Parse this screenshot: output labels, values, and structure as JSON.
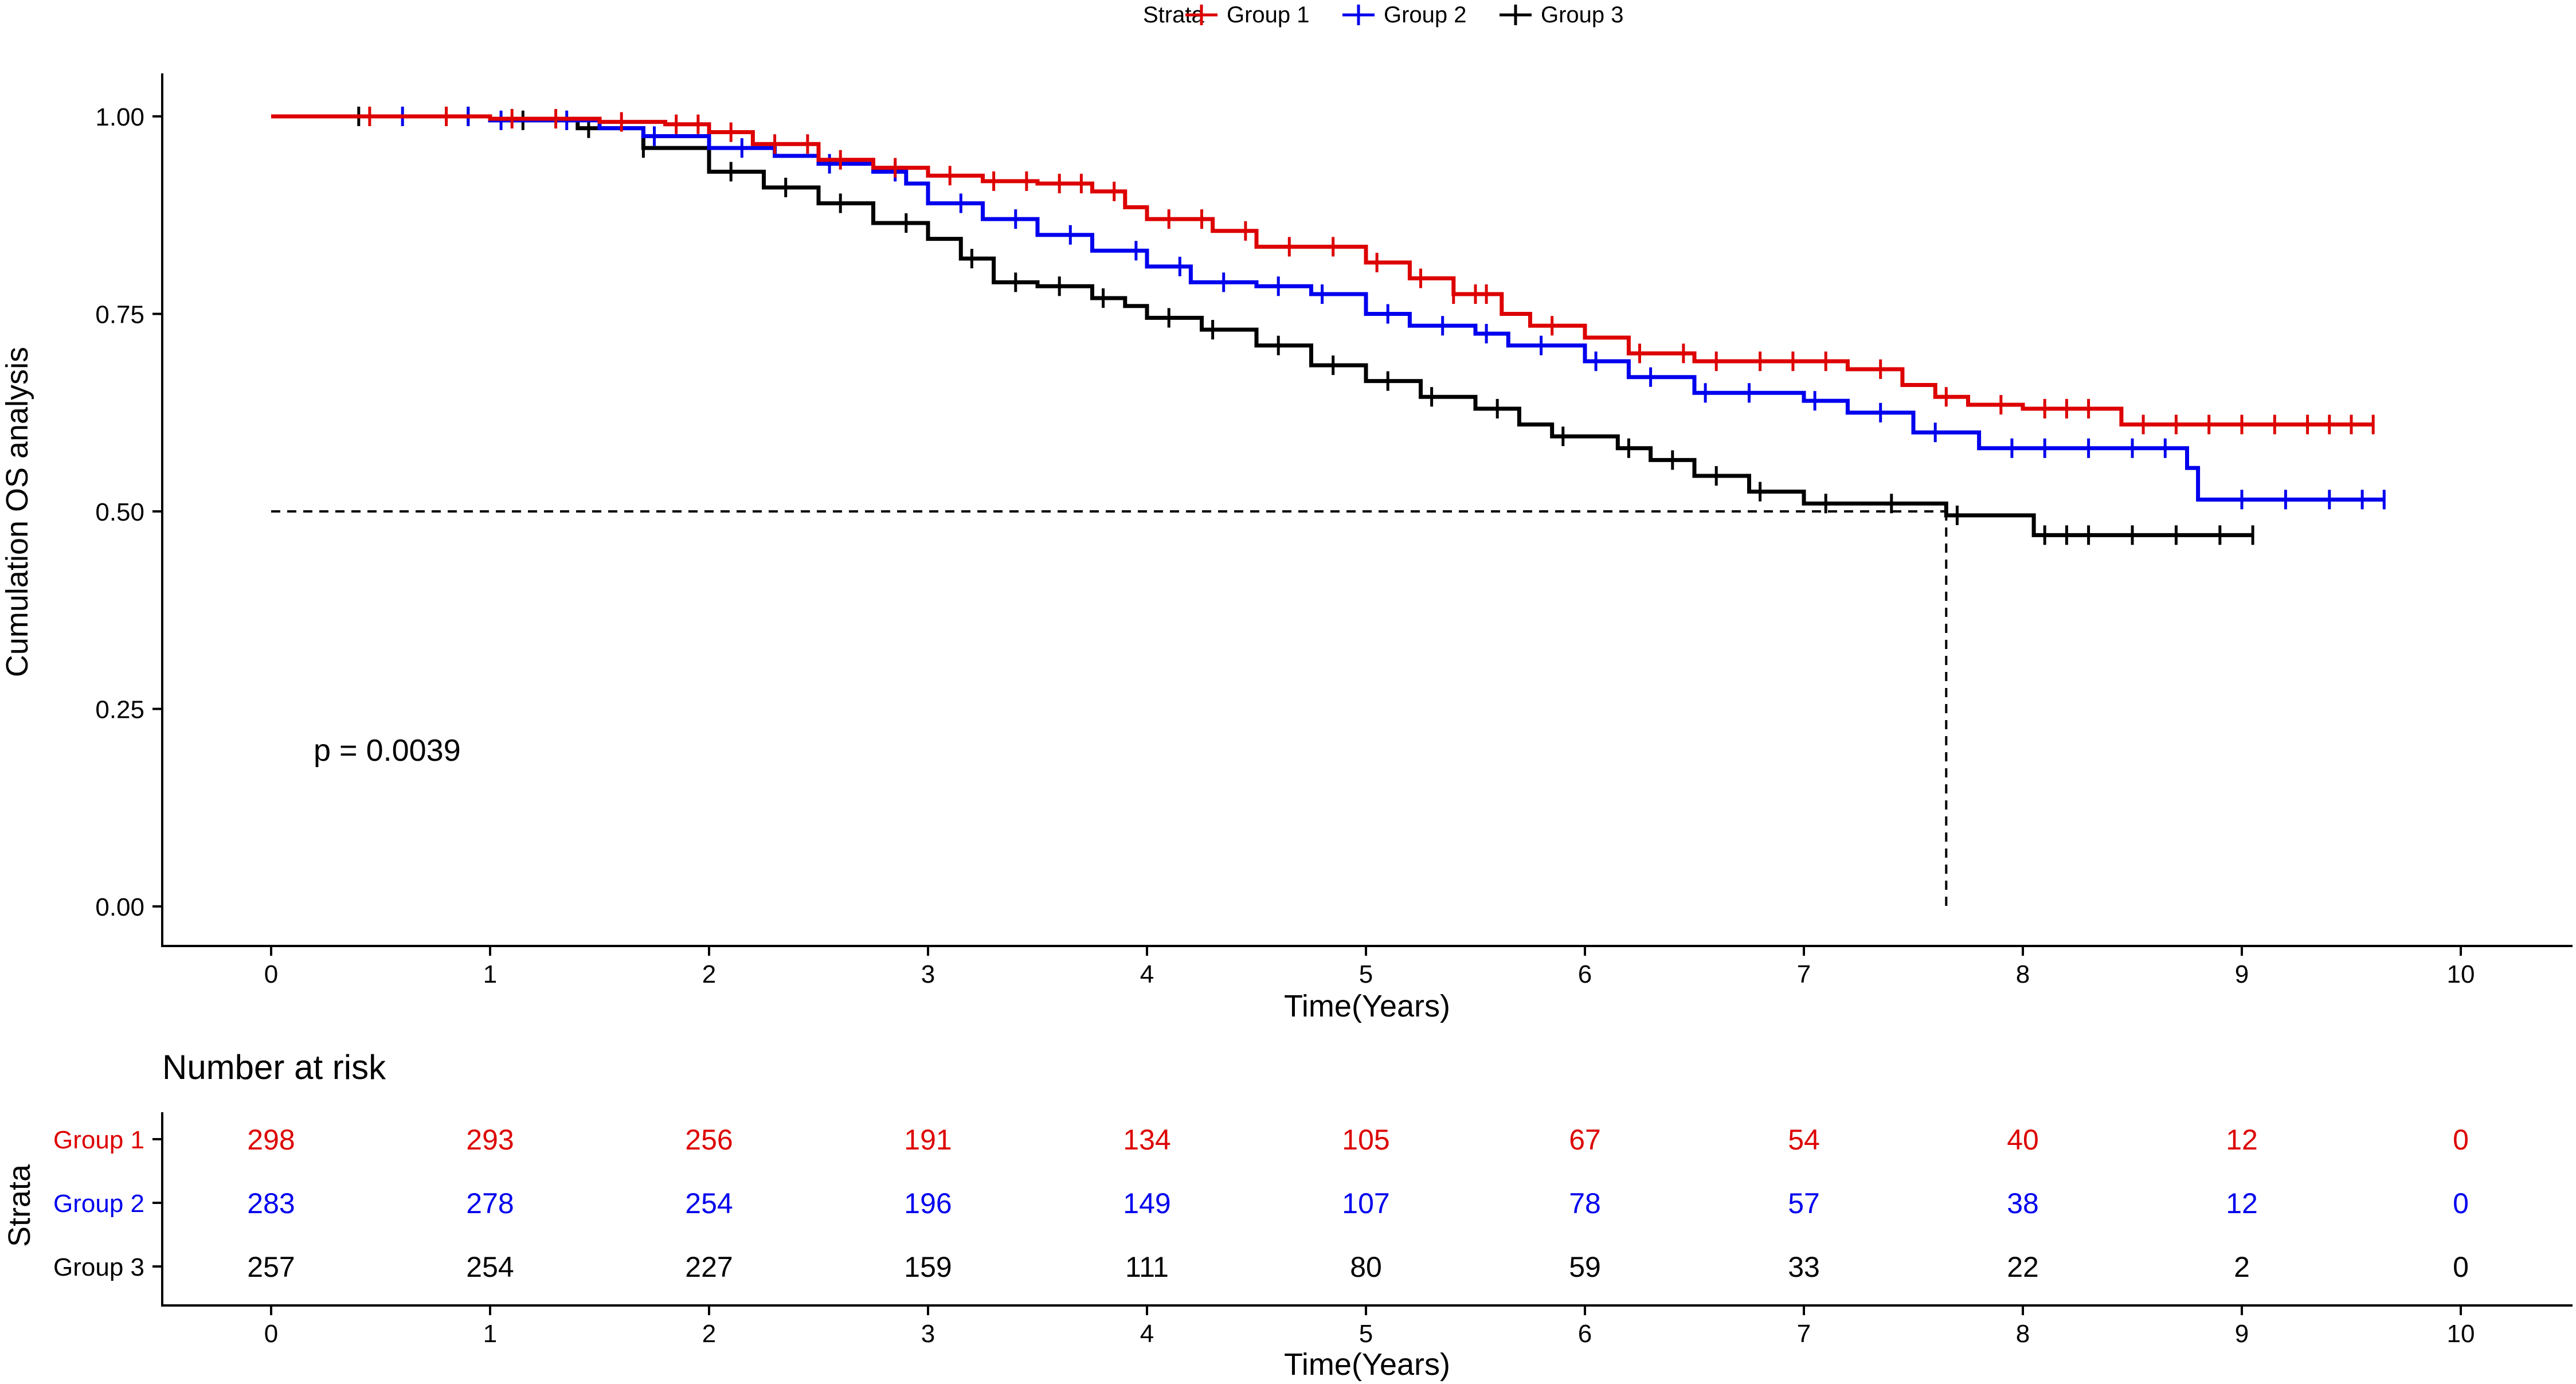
{
  "colors": {
    "group1": "#dd0000",
    "group2": "#0000ee",
    "group3": "#000000",
    "axis": "#000000"
  },
  "legend": {
    "title": "Strata",
    "items": [
      "Group 1",
      "Group 2",
      "Group 3"
    ]
  },
  "plot": {
    "ylabel": "Cumulation OS analysis",
    "xlabel": "Time(Years)",
    "pvalue": "p = 0.0039",
    "yticks": [
      "0.00",
      "0.25",
      "0.50",
      "0.75",
      "1.00"
    ],
    "xticks": [
      "0",
      "1",
      "2",
      "3",
      "4",
      "5",
      "6",
      "7",
      "8",
      "9",
      "10"
    ]
  },
  "risk_table": {
    "title": "Number at risk",
    "ylabel": "Strata",
    "xlabel": "Time(Years)",
    "rows": [
      {
        "label": "Group 1",
        "values": [
          "298",
          "293",
          "256",
          "191",
          "134",
          "105",
          "67",
          "54",
          "40",
          "12",
          "0"
        ]
      },
      {
        "label": "Group 2",
        "values": [
          "283",
          "278",
          "254",
          "196",
          "149",
          "107",
          "78",
          "57",
          "38",
          "12",
          "0"
        ]
      },
      {
        "label": "Group 3",
        "values": [
          "257",
          "254",
          "227",
          "159",
          "111",
          "80",
          "59",
          "33",
          "22",
          "2",
          "0"
        ]
      }
    ]
  },
  "chart_data": {
    "type": "line",
    "subtype": "kaplan-meier",
    "xlabel": "Time(Years)",
    "ylabel": "Cumulation OS analysis",
    "xlim": [
      0,
      10
    ],
    "ylim": [
      0,
      1
    ],
    "median_line": {
      "y": 0.5,
      "x": 7.65
    },
    "series": [
      {
        "name": "Group 1",
        "steps": [
          [
            0,
            1.0
          ],
          [
            1.0,
            0.997
          ],
          [
            1.5,
            0.993
          ],
          [
            1.8,
            0.99
          ],
          [
            2.0,
            0.98
          ],
          [
            2.2,
            0.965
          ],
          [
            2.5,
            0.945
          ],
          [
            2.75,
            0.935
          ],
          [
            3.0,
            0.925
          ],
          [
            3.25,
            0.918
          ],
          [
            3.5,
            0.915
          ],
          [
            3.75,
            0.905
          ],
          [
            3.9,
            0.885
          ],
          [
            4.0,
            0.87
          ],
          [
            4.3,
            0.855
          ],
          [
            4.5,
            0.835
          ],
          [
            5.0,
            0.815
          ],
          [
            5.2,
            0.795
          ],
          [
            5.4,
            0.775
          ],
          [
            5.62,
            0.75
          ],
          [
            5.75,
            0.735
          ],
          [
            6.0,
            0.72
          ],
          [
            6.2,
            0.7
          ],
          [
            6.5,
            0.69
          ],
          [
            7.2,
            0.68
          ],
          [
            7.45,
            0.66
          ],
          [
            7.6,
            0.645
          ],
          [
            7.75,
            0.635
          ],
          [
            8.0,
            0.63
          ],
          [
            8.45,
            0.61
          ],
          [
            9.6,
            0.61
          ]
        ],
        "censors": [
          0.45,
          0.8,
          1.1,
          1.3,
          1.6,
          1.85,
          1.95,
          2.1,
          2.3,
          2.45,
          2.6,
          2.85,
          3.1,
          3.3,
          3.45,
          3.6,
          3.7,
          3.85,
          4.1,
          4.25,
          4.45,
          4.65,
          4.85,
          5.05,
          5.25,
          5.4,
          5.5,
          5.55,
          5.85,
          6.25,
          6.45,
          6.6,
          6.8,
          6.95,
          7.1,
          7.35,
          7.65,
          7.9,
          8.1,
          8.2,
          8.3,
          8.55,
          8.7,
          8.85,
          9.0,
          9.15,
          9.3,
          9.4,
          9.5,
          9.6
        ]
      },
      {
        "name": "Group 2",
        "steps": [
          [
            0,
            1.0
          ],
          [
            1.0,
            0.995
          ],
          [
            1.5,
            0.985
          ],
          [
            1.7,
            0.975
          ],
          [
            2.0,
            0.96
          ],
          [
            2.3,
            0.95
          ],
          [
            2.5,
            0.94
          ],
          [
            2.75,
            0.93
          ],
          [
            2.9,
            0.915
          ],
          [
            3.0,
            0.89
          ],
          [
            3.25,
            0.87
          ],
          [
            3.5,
            0.85
          ],
          [
            3.75,
            0.83
          ],
          [
            4.0,
            0.81
          ],
          [
            4.2,
            0.79
          ],
          [
            4.5,
            0.785
          ],
          [
            4.75,
            0.775
          ],
          [
            5.0,
            0.75
          ],
          [
            5.2,
            0.735
          ],
          [
            5.5,
            0.725
          ],
          [
            5.65,
            0.71
          ],
          [
            6.0,
            0.69
          ],
          [
            6.2,
            0.67
          ],
          [
            6.5,
            0.65
          ],
          [
            7.0,
            0.64
          ],
          [
            7.2,
            0.625
          ],
          [
            7.5,
            0.6
          ],
          [
            7.8,
            0.58
          ],
          [
            8.5,
            0.58
          ],
          [
            8.75,
            0.555
          ],
          [
            8.8,
            0.515
          ],
          [
            9.65,
            0.515
          ]
        ],
        "censors": [
          0.6,
          0.9,
          1.05,
          1.35,
          1.75,
          2.15,
          2.55,
          2.85,
          3.15,
          3.4,
          3.65,
          3.95,
          4.15,
          4.35,
          4.6,
          4.8,
          5.1,
          5.35,
          5.55,
          5.8,
          6.05,
          6.3,
          6.55,
          6.75,
          7.05,
          7.35,
          7.6,
          7.95,
          8.1,
          8.3,
          8.5,
          8.65,
          9.0,
          9.2,
          9.4,
          9.55,
          9.65
        ]
      },
      {
        "name": "Group 3",
        "steps": [
          [
            0,
            1.0
          ],
          [
            1.0,
            0.995
          ],
          [
            1.4,
            0.985
          ],
          [
            1.7,
            0.96
          ],
          [
            2.0,
            0.93
          ],
          [
            2.25,
            0.91
          ],
          [
            2.5,
            0.89
          ],
          [
            2.75,
            0.865
          ],
          [
            3.0,
            0.845
          ],
          [
            3.15,
            0.82
          ],
          [
            3.3,
            0.79
          ],
          [
            3.5,
            0.785
          ],
          [
            3.75,
            0.77
          ],
          [
            3.9,
            0.76
          ],
          [
            4.0,
            0.745
          ],
          [
            4.25,
            0.73
          ],
          [
            4.5,
            0.71
          ],
          [
            4.75,
            0.685
          ],
          [
            5.0,
            0.665
          ],
          [
            5.25,
            0.645
          ],
          [
            5.5,
            0.63
          ],
          [
            5.7,
            0.61
          ],
          [
            5.85,
            0.595
          ],
          [
            6.15,
            0.58
          ],
          [
            6.3,
            0.565
          ],
          [
            6.5,
            0.545
          ],
          [
            6.75,
            0.525
          ],
          [
            7.0,
            0.51
          ],
          [
            7.65,
            0.495
          ],
          [
            8.05,
            0.47
          ],
          [
            9.05,
            0.47
          ]
        ],
        "censors": [
          0.4,
          0.9,
          1.15,
          1.45,
          1.7,
          2.1,
          2.35,
          2.6,
          2.9,
          3.2,
          3.4,
          3.6,
          3.8,
          4.1,
          4.3,
          4.6,
          4.85,
          5.1,
          5.3,
          5.6,
          5.9,
          6.2,
          6.4,
          6.6,
          6.8,
          7.1,
          7.4,
          7.7,
          8.1,
          8.2,
          8.3,
          8.5,
          8.7,
          8.9,
          9.05
        ]
      }
    ]
  }
}
